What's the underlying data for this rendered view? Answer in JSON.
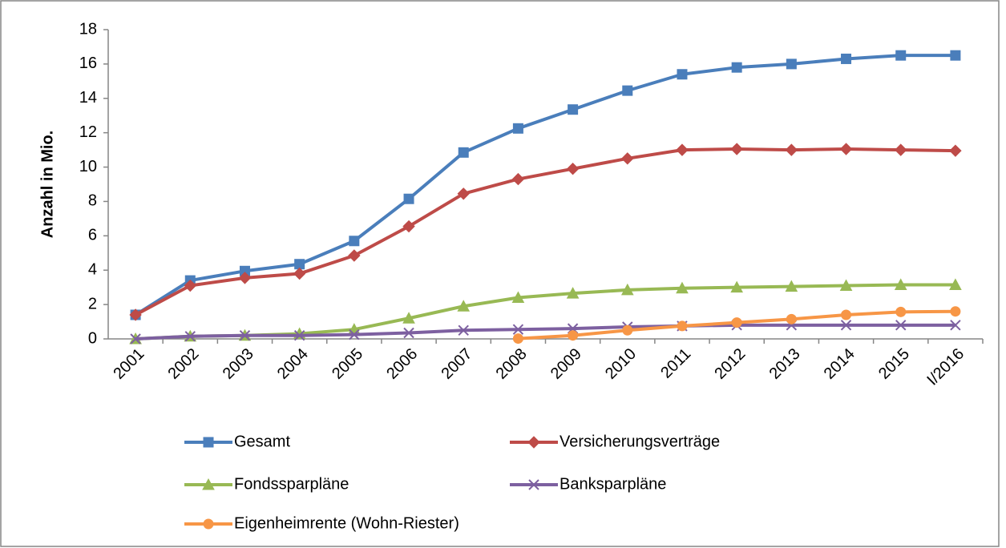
{
  "chart_data": {
    "type": "line",
    "y_label": "Anzahl in Mio.",
    "categories": [
      "2001",
      "2002",
      "2003",
      "2004",
      "2005",
      "2006",
      "2007",
      "2008",
      "2009",
      "2010",
      "2011",
      "2012",
      "2013",
      "2014",
      "2015",
      "I/2016"
    ],
    "series": [
      {
        "name": "Gesamt",
        "color": "#4a7ebb",
        "marker": "square",
        "values": [
          1.4,
          3.4,
          3.95,
          4.35,
          5.7,
          8.15,
          10.85,
          12.25,
          13.35,
          14.45,
          15.4,
          15.8,
          16.0,
          16.3,
          16.5,
          16.5
        ]
      },
      {
        "name": "Versicherungsverträge",
        "color": "#be4b48",
        "marker": "diamond",
        "values": [
          1.4,
          3.1,
          3.55,
          3.8,
          4.85,
          6.55,
          8.45,
          9.3,
          9.9,
          10.5,
          11.0,
          11.05,
          11.0,
          11.05,
          11.0,
          10.95
        ]
      },
      {
        "name": "Fondssparpläne",
        "color": "#98b954",
        "marker": "triangle",
        "values": [
          0,
          0.15,
          0.2,
          0.3,
          0.55,
          1.2,
          1.9,
          2.4,
          2.65,
          2.85,
          2.95,
          3.0,
          3.05,
          3.1,
          3.15,
          3.15
        ]
      },
      {
        "name": "Banksparpläne",
        "color": "#7d60a0",
        "marker": "x",
        "values": [
          0,
          0.15,
          0.2,
          0.2,
          0.25,
          0.35,
          0.5,
          0.55,
          0.6,
          0.7,
          0.75,
          0.8,
          0.8,
          0.8,
          0.8,
          0.8
        ]
      },
      {
        "name": "Eigenheimrente (Wohn-Riester)",
        "color": "#f79646",
        "marker": "circle",
        "values": [
          null,
          null,
          null,
          null,
          null,
          null,
          null,
          0.02,
          0.2,
          0.5,
          0.75,
          0.95,
          1.15,
          1.4,
          1.57,
          1.6
        ]
      }
    ],
    "ylim": [
      0,
      18
    ],
    "yticks": [
      0,
      2,
      4,
      6,
      8,
      10,
      12,
      14,
      16,
      18
    ],
    "grid": false,
    "legend": "bottom"
  }
}
